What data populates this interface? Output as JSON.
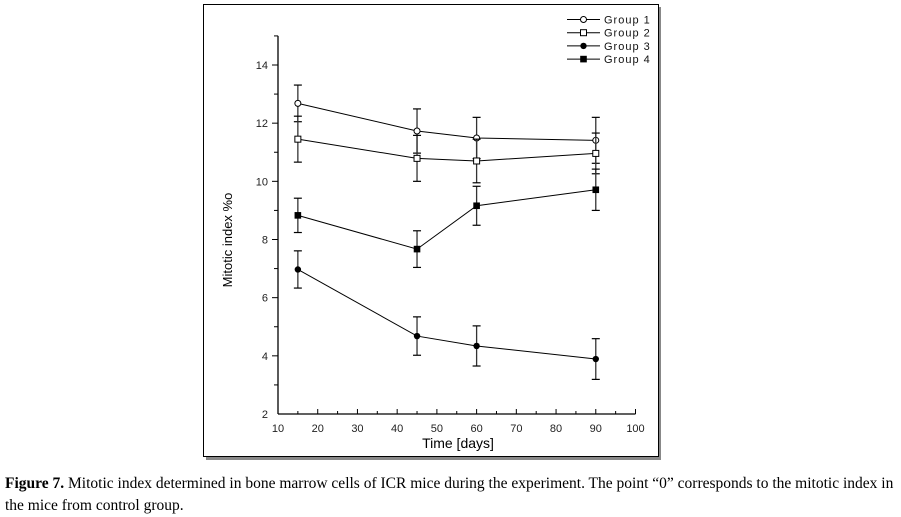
{
  "chart_data": {
    "type": "line",
    "title": "",
    "xlabel": "Time [days]",
    "ylabel": "Mitotic index %o",
    "xlim": [
      10,
      100
    ],
    "ylim": [
      2,
      15
    ],
    "xticks": [
      "10",
      "20",
      "30",
      "40",
      "50",
      "60",
      "70",
      "80",
      "90",
      "100"
    ],
    "yticks": [
      "2",
      "4",
      "6",
      "8",
      "10",
      "12",
      "14"
    ],
    "legend_position": "top-right",
    "grid": false,
    "x": [
      15,
      45,
      60,
      90
    ],
    "series": [
      {
        "name": "Group 1",
        "marker": "open-circle",
        "values": [
          12.68,
          11.73,
          11.49,
          11.41
        ],
        "errors": [
          0.63,
          0.76,
          0.71,
          0.79
        ]
      },
      {
        "name": "Group 2",
        "marker": "open-square",
        "values": [
          11.45,
          10.79,
          10.7,
          10.96
        ],
        "errors": [
          0.79,
          0.79,
          0.75,
          0.7
        ]
      },
      {
        "name": "Group 3",
        "marker": "filled-circle",
        "values": [
          6.97,
          4.68,
          4.34,
          3.89
        ],
        "errors": [
          0.64,
          0.66,
          0.69,
          0.7
        ]
      },
      {
        "name": "Group 4",
        "marker": "filled-square",
        "values": [
          8.83,
          7.67,
          9.16,
          9.71
        ],
        "errors": [
          0.59,
          0.63,
          0.67,
          0.71
        ]
      }
    ]
  },
  "caption": {
    "label": "Figure 7.",
    "text": " Mitotic index determined in bone marrow cells of ICR mice during the experiment. The point “0” corresponds to the mitotic index in the mice from control group."
  }
}
